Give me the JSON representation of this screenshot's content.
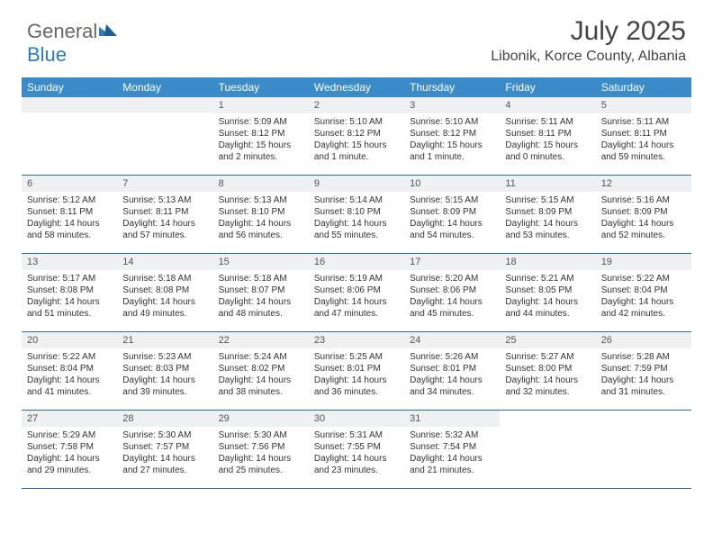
{
  "logo": {
    "text1": "General",
    "text2": "Blue"
  },
  "header": {
    "month_title": "July 2025",
    "location": "Libonik, Korce County, Albania"
  },
  "calendar": {
    "header_bg": "#3b8bc9",
    "header_text_color": "#ffffff",
    "daynum_bg": "#eef0f2",
    "border_color": "#2b6ca3",
    "day_names": [
      "Sunday",
      "Monday",
      "Tuesday",
      "Wednesday",
      "Thursday",
      "Friday",
      "Saturday"
    ],
    "weeks": [
      [
        {
          "empty": true
        },
        {
          "empty": true
        },
        {
          "num": "1",
          "sunrise": "Sunrise: 5:09 AM",
          "sunset": "Sunset: 8:12 PM",
          "day1": "Daylight: 15 hours",
          "day2": "and 2 minutes."
        },
        {
          "num": "2",
          "sunrise": "Sunrise: 5:10 AM",
          "sunset": "Sunset: 8:12 PM",
          "day1": "Daylight: 15 hours",
          "day2": "and 1 minute."
        },
        {
          "num": "3",
          "sunrise": "Sunrise: 5:10 AM",
          "sunset": "Sunset: 8:12 PM",
          "day1": "Daylight: 15 hours",
          "day2": "and 1 minute."
        },
        {
          "num": "4",
          "sunrise": "Sunrise: 5:11 AM",
          "sunset": "Sunset: 8:11 PM",
          "day1": "Daylight: 15 hours",
          "day2": "and 0 minutes."
        },
        {
          "num": "5",
          "sunrise": "Sunrise: 5:11 AM",
          "sunset": "Sunset: 8:11 PM",
          "day1": "Daylight: 14 hours",
          "day2": "and 59 minutes."
        }
      ],
      [
        {
          "num": "6",
          "sunrise": "Sunrise: 5:12 AM",
          "sunset": "Sunset: 8:11 PM",
          "day1": "Daylight: 14 hours",
          "day2": "and 58 minutes."
        },
        {
          "num": "7",
          "sunrise": "Sunrise: 5:13 AM",
          "sunset": "Sunset: 8:11 PM",
          "day1": "Daylight: 14 hours",
          "day2": "and 57 minutes."
        },
        {
          "num": "8",
          "sunrise": "Sunrise: 5:13 AM",
          "sunset": "Sunset: 8:10 PM",
          "day1": "Daylight: 14 hours",
          "day2": "and 56 minutes."
        },
        {
          "num": "9",
          "sunrise": "Sunrise: 5:14 AM",
          "sunset": "Sunset: 8:10 PM",
          "day1": "Daylight: 14 hours",
          "day2": "and 55 minutes."
        },
        {
          "num": "10",
          "sunrise": "Sunrise: 5:15 AM",
          "sunset": "Sunset: 8:09 PM",
          "day1": "Daylight: 14 hours",
          "day2": "and 54 minutes."
        },
        {
          "num": "11",
          "sunrise": "Sunrise: 5:15 AM",
          "sunset": "Sunset: 8:09 PM",
          "day1": "Daylight: 14 hours",
          "day2": "and 53 minutes."
        },
        {
          "num": "12",
          "sunrise": "Sunrise: 5:16 AM",
          "sunset": "Sunset: 8:09 PM",
          "day1": "Daylight: 14 hours",
          "day2": "and 52 minutes."
        }
      ],
      [
        {
          "num": "13",
          "sunrise": "Sunrise: 5:17 AM",
          "sunset": "Sunset: 8:08 PM",
          "day1": "Daylight: 14 hours",
          "day2": "and 51 minutes."
        },
        {
          "num": "14",
          "sunrise": "Sunrise: 5:18 AM",
          "sunset": "Sunset: 8:08 PM",
          "day1": "Daylight: 14 hours",
          "day2": "and 49 minutes."
        },
        {
          "num": "15",
          "sunrise": "Sunrise: 5:18 AM",
          "sunset": "Sunset: 8:07 PM",
          "day1": "Daylight: 14 hours",
          "day2": "and 48 minutes."
        },
        {
          "num": "16",
          "sunrise": "Sunrise: 5:19 AM",
          "sunset": "Sunset: 8:06 PM",
          "day1": "Daylight: 14 hours",
          "day2": "and 47 minutes."
        },
        {
          "num": "17",
          "sunrise": "Sunrise: 5:20 AM",
          "sunset": "Sunset: 8:06 PM",
          "day1": "Daylight: 14 hours",
          "day2": "and 45 minutes."
        },
        {
          "num": "18",
          "sunrise": "Sunrise: 5:21 AM",
          "sunset": "Sunset: 8:05 PM",
          "day1": "Daylight: 14 hours",
          "day2": "and 44 minutes."
        },
        {
          "num": "19",
          "sunrise": "Sunrise: 5:22 AM",
          "sunset": "Sunset: 8:04 PM",
          "day1": "Daylight: 14 hours",
          "day2": "and 42 minutes."
        }
      ],
      [
        {
          "num": "20",
          "sunrise": "Sunrise: 5:22 AM",
          "sunset": "Sunset: 8:04 PM",
          "day1": "Daylight: 14 hours",
          "day2": "and 41 minutes."
        },
        {
          "num": "21",
          "sunrise": "Sunrise: 5:23 AM",
          "sunset": "Sunset: 8:03 PM",
          "day1": "Daylight: 14 hours",
          "day2": "and 39 minutes."
        },
        {
          "num": "22",
          "sunrise": "Sunrise: 5:24 AM",
          "sunset": "Sunset: 8:02 PM",
          "day1": "Daylight: 14 hours",
          "day2": "and 38 minutes."
        },
        {
          "num": "23",
          "sunrise": "Sunrise: 5:25 AM",
          "sunset": "Sunset: 8:01 PM",
          "day1": "Daylight: 14 hours",
          "day2": "and 36 minutes."
        },
        {
          "num": "24",
          "sunrise": "Sunrise: 5:26 AM",
          "sunset": "Sunset: 8:01 PM",
          "day1": "Daylight: 14 hours",
          "day2": "and 34 minutes."
        },
        {
          "num": "25",
          "sunrise": "Sunrise: 5:27 AM",
          "sunset": "Sunset: 8:00 PM",
          "day1": "Daylight: 14 hours",
          "day2": "and 32 minutes."
        },
        {
          "num": "26",
          "sunrise": "Sunrise: 5:28 AM",
          "sunset": "Sunset: 7:59 PM",
          "day1": "Daylight: 14 hours",
          "day2": "and 31 minutes."
        }
      ],
      [
        {
          "num": "27",
          "sunrise": "Sunrise: 5:29 AM",
          "sunset": "Sunset: 7:58 PM",
          "day1": "Daylight: 14 hours",
          "day2": "and 29 minutes."
        },
        {
          "num": "28",
          "sunrise": "Sunrise: 5:30 AM",
          "sunset": "Sunset: 7:57 PM",
          "day1": "Daylight: 14 hours",
          "day2": "and 27 minutes."
        },
        {
          "num": "29",
          "sunrise": "Sunrise: 5:30 AM",
          "sunset": "Sunset: 7:56 PM",
          "day1": "Daylight: 14 hours",
          "day2": "and 25 minutes."
        },
        {
          "num": "30",
          "sunrise": "Sunrise: 5:31 AM",
          "sunset": "Sunset: 7:55 PM",
          "day1": "Daylight: 14 hours",
          "day2": "and 23 minutes."
        },
        {
          "num": "31",
          "sunrise": "Sunrise: 5:32 AM",
          "sunset": "Sunset: 7:54 PM",
          "day1": "Daylight: 14 hours",
          "day2": "and 21 minutes."
        },
        {
          "empty": true,
          "blank": true
        },
        {
          "empty": true,
          "blank": true
        }
      ]
    ]
  }
}
